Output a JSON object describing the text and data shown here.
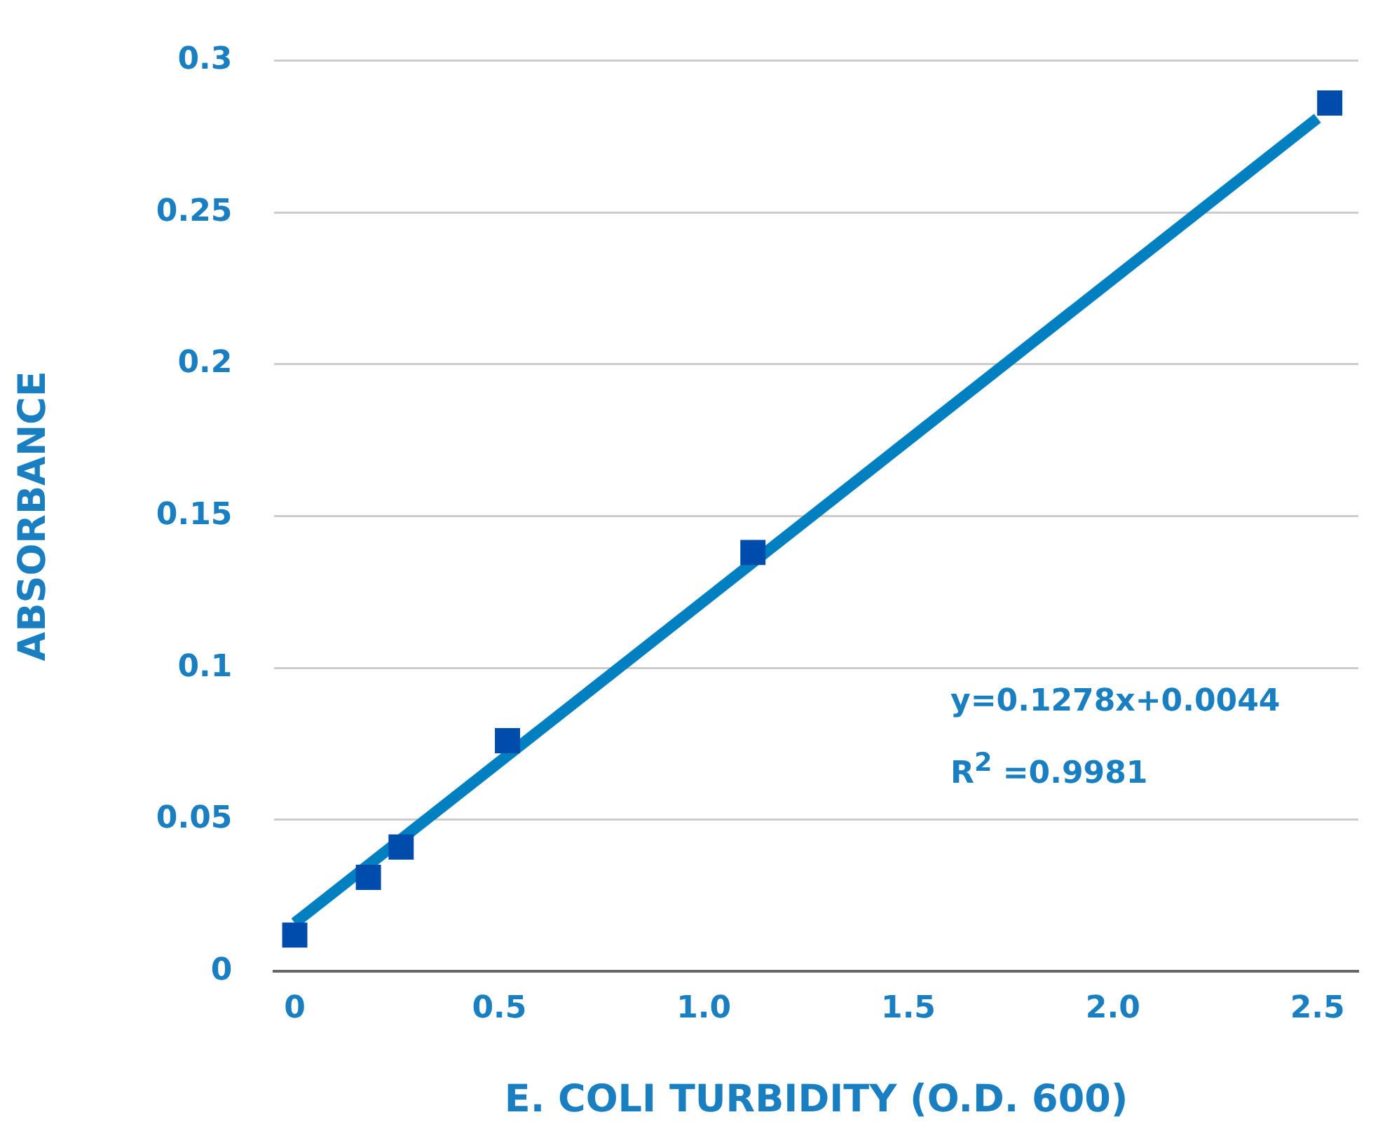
{
  "chart_data": {
    "type": "scatter",
    "xlabel": "E. COLI TURBIDITY (O.D. 600)",
    "ylabel": "ABSORBANCE",
    "x": [
      0,
      0.18,
      0.26,
      0.52,
      1.12,
      2.53
    ],
    "series": [
      {
        "type": "line",
        "color": "#0080c0",
        "x": [
          0,
          2.5
        ],
        "values": [
          0.016,
          0.281
        ],
        "marker": "none"
      },
      {
        "type": "scatter",
        "color": "#004cad",
        "values": [
          0.012,
          0.031,
          0.041,
          0.076,
          0.138,
          0.286
        ],
        "marker": "square"
      }
    ],
    "xlim": [
      -0.05,
      2.6
    ],
    "xticks": [
      0,
      0.5,
      {
        "value": 1,
        "label": "1.0"
      },
      1.5,
      {
        "value": 2,
        "label": "2.0"
      },
      2.5
    ],
    "ylim": [
      0,
      0.3
    ],
    "yticks": [
      0,
      0.05,
      0.1,
      0.15,
      0.2,
      0.25,
      0.3
    ],
    "grid": "y",
    "legend": false,
    "annotations": [
      "y=0.1278x+0.0044",
      "R$^{2}$ =0.9981"
    ]
  }
}
